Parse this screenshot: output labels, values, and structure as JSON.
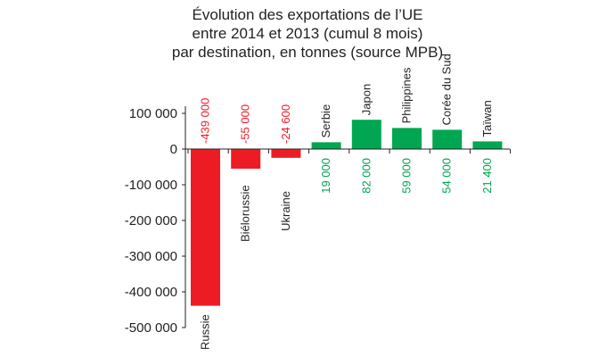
{
  "chart_data": {
    "type": "bar",
    "title_lines": [
      "Évolution des exportations de l’UE",
      "entre 2014 et 2013 (cumul 8 mois)",
      "par destination, en tonnes (source MPB)"
    ],
    "xlabel": "",
    "ylabel": "",
    "ylim": [
      -500000,
      100000
    ],
    "yticks": [
      100000,
      0,
      -100000,
      -200000,
      -300000,
      -400000,
      -500000
    ],
    "ytick_labels": [
      "100 000",
      "0",
      "-100 000",
      "-200 000",
      "-300 000",
      "-400 000",
      "-500 000"
    ],
    "categories": [
      "Russie",
      "Biélorussie",
      "Ukraine",
      "Serbie",
      "Japon",
      "Philippines",
      "Corée du Sud",
      "Taïwan"
    ],
    "values": [
      -439000,
      -55000,
      -24600,
      19000,
      82000,
      59000,
      54000,
      21400
    ],
    "value_labels": [
      "-439 000",
      "-55 000",
      "-24 600",
      "19 000",
      "82 000",
      "59 000",
      "54 000",
      "21 400"
    ],
    "grid": false,
    "legend": "none",
    "colors": {
      "negative": "#ed1c24",
      "positive": "#00a651",
      "axis": "#231f20"
    }
  }
}
